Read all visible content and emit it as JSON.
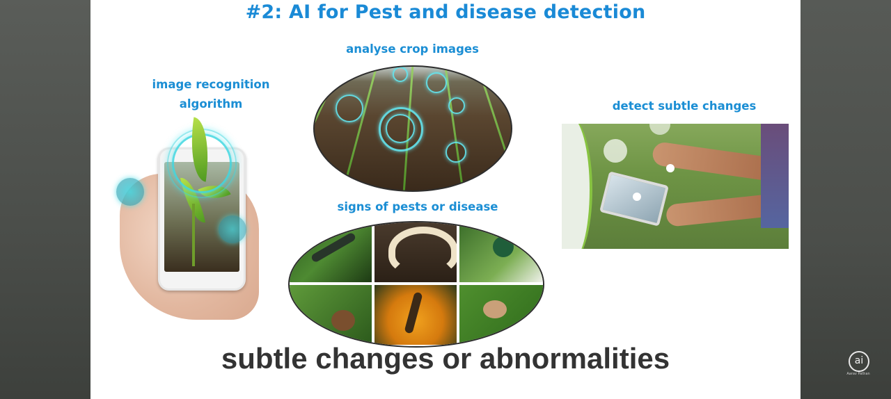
{
  "slide": {
    "title": "#2: AI for Pest and disease detection",
    "label_image_recognition_line1": "image recognition",
    "label_image_recognition_line2": "algorithm",
    "label_analyse": "analyse crop images",
    "label_signs": "signs of pests or disease",
    "label_detect": "detect subtle changes",
    "caption": "subtle changes or abnormalities"
  },
  "logo": {
    "text": "ai",
    "subtext": "Aarav Pathan"
  },
  "colors": {
    "title_blue": "#1a8ad6",
    "caption_gray": "#333333",
    "accent_cyan": "#41d7e1",
    "leaf_green": "#4f9a20"
  },
  "icons": [
    "phone-icon",
    "leaf-icon",
    "bug-icon",
    "tablet-icon"
  ]
}
